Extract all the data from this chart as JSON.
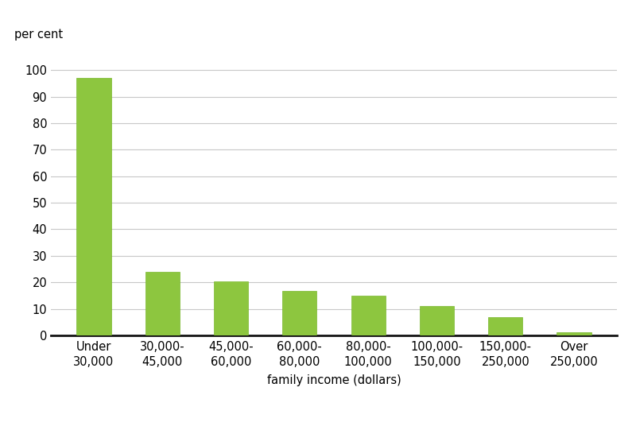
{
  "categories": [
    "Under\n30,000",
    "30,000-\n45,000",
    "45,000-\n60,000",
    "60,000-\n80,000",
    "80,000-\n100,000",
    "100,000-\n150,000",
    "150,000-\n250,000",
    "Over\n250,000"
  ],
  "values": [
    97,
    24,
    20.3,
    16.8,
    15.0,
    11.0,
    6.8,
    1.2
  ],
  "bar_color": "#8dc63f",
  "bar_edge_color": "#7ab82e",
  "ylabel": "per cent",
  "xlabel": "family income (dollars)",
  "ylim": [
    0,
    107
  ],
  "yticks": [
    0,
    10,
    20,
    30,
    40,
    50,
    60,
    70,
    80,
    90,
    100
  ],
  "background_color": "#ffffff",
  "grid_color": "#c8c8c8",
  "bar_width": 0.5,
  "ylabel_fontsize": 10.5,
  "xlabel_fontsize": 10.5,
  "tick_fontsize": 10.5
}
